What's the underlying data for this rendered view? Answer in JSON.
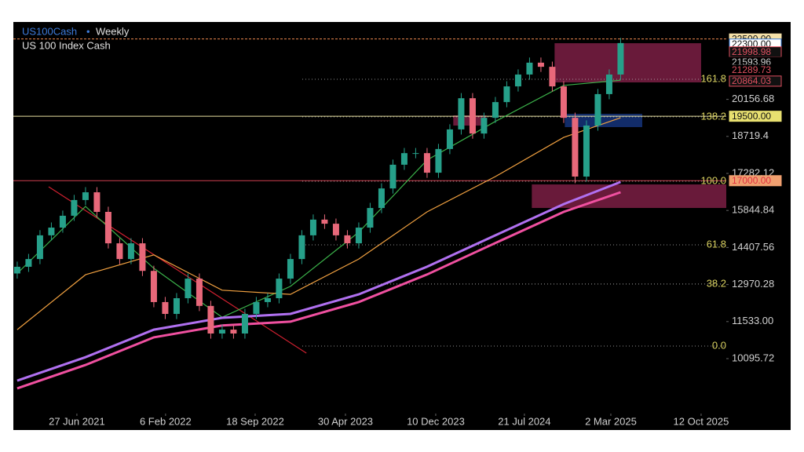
{
  "chart_data": {
    "type": "candlestick",
    "title": "US100Cash",
    "timeframe": "Weekly",
    "subtitle": "US 100 Index Cash",
    "open": [
      13400,
      13660,
      13960,
      14880,
      15180,
      15640,
      16250,
      16550,
      15790,
      14570,
      13960,
      14570,
      13500,
      12290,
      11830,
      12440,
      13200,
      12140,
      11070,
      11220,
      11070,
      11830,
      12290,
      12440,
      13200,
      13960,
      14880,
      15490,
      15330,
      14880,
      14570,
      15180,
      15940,
      16700,
      17620,
      18070,
      18070,
      17310,
      18230,
      18990,
      20200,
      18830,
      19440,
      20050,
      20660,
      21120,
      21580,
      21420,
      20660,
      19440,
      17160,
      19140,
      20360,
      21120
    ],
    "high": [
      13860,
      14160,
      15080,
      15380,
      15840,
      16450,
      16750,
      16750,
      15990,
      14770,
      14770,
      14770,
      13700,
      12490,
      12640,
      13400,
      13400,
      12340,
      11420,
      11420,
      12030,
      12490,
      12640,
      13400,
      14160,
      15080,
      15690,
      15690,
      15530,
      15080,
      15380,
      16140,
      16900,
      17820,
      18270,
      18270,
      18270,
      18430,
      19190,
      20400,
      20400,
      19640,
      20250,
      20860,
      21320,
      21780,
      21780,
      21620,
      20860,
      19640,
      19340,
      20560,
      21320,
      22540
    ],
    "low": [
      13200,
      13460,
      13760,
      14680,
      14980,
      15440,
      16050,
      15590,
      14370,
      13760,
      13760,
      13300,
      12090,
      11630,
      11630,
      12240,
      11940,
      10870,
      10870,
      10870,
      10870,
      11630,
      12090,
      12240,
      13000,
      13760,
      14680,
      15130,
      14680,
      14370,
      14370,
      14980,
      15740,
      16500,
      17420,
      17870,
      17110,
      17110,
      18030,
      18790,
      18630,
      18630,
      19240,
      19850,
      20460,
      20920,
      21220,
      20460,
      19240,
      16900,
      16960,
      18940,
      20160,
      20920
    ],
    "close": [
      13660,
      13960,
      14880,
      15180,
      15640,
      16250,
      16550,
      15790,
      14570,
      13960,
      14570,
      13500,
      12290,
      11830,
      12440,
      13200,
      12140,
      11070,
      11220,
      11070,
      11830,
      12290,
      12440,
      13200,
      13960,
      14880,
      15490,
      15330,
      14880,
      14570,
      15180,
      15940,
      16700,
      17620,
      18070,
      18070,
      17310,
      18230,
      18990,
      20200,
      18830,
      19440,
      20050,
      20660,
      21120,
      21580,
      21420,
      20660,
      19440,
      17160,
      19140,
      20360,
      21120,
      22340
    ],
    "up_color": "#26a08a",
    "down_color": "#e8687a",
    "series": [
      {
        "color": "#3bb24a",
        "x": [
          0,
          6,
          12,
          18,
          24,
          30,
          36,
          42,
          48,
          53
        ],
        "values": [
          13400,
          16000,
          13600,
          11700,
          12900,
          15000,
          17800,
          19300,
          20700,
          20900
        ]
      },
      {
        "color": "#f0a040",
        "x": [
          0,
          6,
          12,
          18,
          24,
          30,
          36,
          42,
          48,
          53
        ],
        "values": [
          11220,
          13350,
          14120,
          12750,
          12590,
          13960,
          15790,
          17160,
          18680,
          19440
        ]
      },
      {
        "color": "#b070f0",
        "x": [
          0,
          6,
          12,
          18,
          24,
          30,
          36,
          42,
          48,
          53
        ],
        "values": [
          9240,
          10150,
          11220,
          11680,
          11830,
          12590,
          13660,
          14880,
          16090,
          16950
        ]
      },
      {
        "color": "#f050a0",
        "x": [
          0,
          6,
          12,
          18,
          24,
          30,
          36,
          42,
          48,
          53
        ],
        "values": [
          8940,
          9850,
          10920,
          11380,
          11530,
          12290,
          13360,
          14580,
          15790,
          16550
        ]
      }
    ],
    "xlim": [
      -0.34,
      62.28
    ],
    "xticks": [
      {
        "value": 5.24,
        "label": "27 Jun 2021"
      },
      {
        "value": 13.03,
        "label": "6 Feb 2022"
      },
      {
        "value": 20.9,
        "label": "18 Sep 2022"
      },
      {
        "value": 28.83,
        "label": "30 Apr 2023"
      },
      {
        "value": 36.76,
        "label": "10 Dec 2023"
      },
      {
        "value": 44.55,
        "label": "21 Jul 2024"
      },
      {
        "value": 52.14,
        "label": "2 Mar 2025"
      },
      {
        "value": 60.07,
        "label": "12 Oct 2025"
      }
    ],
    "ylim": [
      7964,
      23159
    ],
    "yticks": [
      20156.68,
      18719.4,
      17282.12,
      15844.84,
      14407.56,
      12970.28,
      {
        "value": 11533,
        "label": "11533.00"
      },
      10095.72
    ],
    "hlines": [
      {
        "value": 22500,
        "color": "#f08a50",
        "dashed": true
      },
      {
        "value": 19500,
        "color": "#e8e0a0",
        "dashed": false
      },
      {
        "value": 17000,
        "color": "#d04050",
        "dashed": false
      }
    ],
    "trendline": {
      "x": [
        2.76,
        25.4
      ],
      "values": [
        16764,
        10309
      ],
      "color": "#d02030"
    },
    "zones": [
      {
        "x": [
          47.2,
          60.07
        ],
        "y": [
          20814,
          22335
        ],
        "color": "#c0306a"
      },
      {
        "x": [
          38.3,
          41.2
        ],
        "y": [
          19139,
          19535
        ],
        "color": "#c0306a"
      },
      {
        "x": [
          48.1,
          54.9
        ],
        "y": [
          19079,
          19596
        ],
        "color": "#2050c0"
      },
      {
        "x": [
          45.2,
          62.28
        ],
        "y": [
          15942,
          16855
        ],
        "color": "#c0306a"
      }
    ],
    "fib_color": "#d8d060",
    "fib_levels": [
      {
        "label": "161.8",
        "value": 20936
      },
      {
        "label": "138.2",
        "value": 19474
      },
      {
        "label": "100.0",
        "value": 16978
      },
      {
        "label": "61.8",
        "value": 14510
      },
      {
        "label": "38.2",
        "value": 12990
      },
      {
        "label": "0.0",
        "value": 10583
      }
    ],
    "price_labels": [
      {
        "value": 22500,
        "label": "22500.00",
        "color": "#111111",
        "background": "#f4e0a8",
        "border": "#f4e0a8"
      },
      {
        "value": 22300,
        "label": "22300.00",
        "color": "#111111",
        "background": "#ffffff",
        "border": "#3a7bd5"
      },
      {
        "value": 21998.98,
        "label": "21998.98",
        "color": "#e05060",
        "background": "#111111",
        "border": "#e05060"
      },
      {
        "value": 21593.96,
        "label": "21593.96",
        "color": "#d0d0d0",
        "background": "#000000",
        "border": "#000000"
      },
      {
        "value": 21289.73,
        "label": "21289.73",
        "color": "#e05060",
        "background": "#000000",
        "border": "#000000"
      },
      {
        "value": 20864.03,
        "label": "20864.03",
        "color": "#e05060",
        "background": "#111111",
        "border": "#e05060"
      },
      {
        "value": 19500,
        "label": "19500.00",
        "color": "#111111",
        "background": "#e8e070",
        "border": "#e8e070"
      },
      {
        "value": 17000,
        "label": "17000.00",
        "color": "#e03040",
        "background": "#f0a070",
        "border": "#f0a070"
      }
    ]
  }
}
